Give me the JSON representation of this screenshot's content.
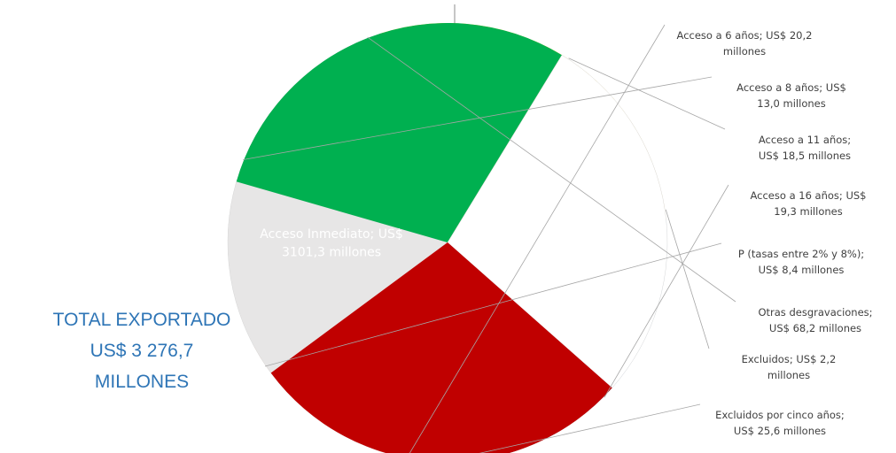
{
  "total": {
    "lines": [
      "TOTAL EXPORTADO",
      "US$ 3 276,7",
      "MILLONES"
    ]
  },
  "colors": {
    "main": "#2e75b6",
    "leader": "#a6a6a6",
    "text": "#404040",
    "total": "#2e75b6"
  },
  "chart_data": {
    "type": "pie",
    "unit": "millones US$",
    "slices": [
      {
        "name": "Acceso Inmediato",
        "value": 3101.3,
        "color": "#2e75b6",
        "label_lines": [
          "Acceso Inmediato; US$",
          "3101,3 millones"
        ]
      },
      {
        "name": "Acceso a 6 años",
        "value": 20.2,
        "color": "#ed7d31",
        "label_lines": [
          "Acceso a 6 años; US$ 20,2",
          "millones"
        ]
      },
      {
        "name": "Acceso a 8 años",
        "value": 13.0,
        "color": "#a5a5a5",
        "label_lines": [
          "Acceso a 8 años; US$",
          "13,0 millones"
        ]
      },
      {
        "name": "Acceso a 11 años",
        "value": 18.5,
        "color": "#ffc000",
        "label_lines": [
          "Acceso a 11 años;",
          "US$ 18,5 millones"
        ]
      },
      {
        "name": "Acceso a 16 años",
        "value": 19.3,
        "color": "#5b9bd5",
        "label_lines": [
          "Acceso a 16 años; US$",
          "19,3 millones"
        ]
      },
      {
        "name": "P (tasas entre 2% y 8%)",
        "value": 8.4,
        "color": "#e7e6e6",
        "label_lines": [
          "P (tasas entre 2% y 8%);",
          "US$ 8,4 millones"
        ]
      },
      {
        "name": "Otras desgravaciones",
        "value": 68.2,
        "color": "#00b050",
        "label_lines": [
          "Otras desgravaciones;",
          "US$ 68,2 millones"
        ]
      },
      {
        "name": "Excluidos",
        "value": 2.2,
        "color": "#ffffff",
        "label_lines": [
          "Excluidos; US$ 2,2",
          "millones"
        ]
      },
      {
        "name": "Excluidos por cinco años",
        "value": 25.6,
        "color": "#c00000",
        "label_lines": [
          "Excluidos por cinco años;",
          "US$ 25,6 millones"
        ]
      }
    ]
  }
}
